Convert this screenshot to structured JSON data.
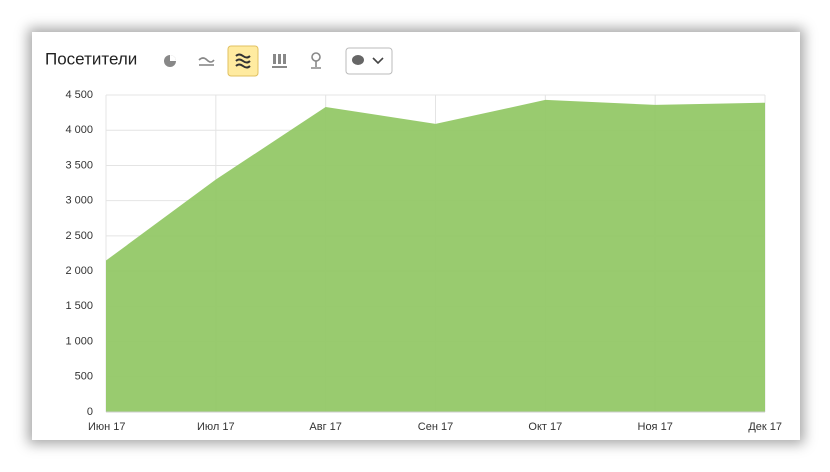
{
  "chart_data": {
    "type": "area",
    "title": "Посетители",
    "categories": [
      "Июн 17",
      "Июл 17",
      "Авг 17",
      "Сен 17",
      "Окт 17",
      "Ноя 17",
      "Дек 17"
    ],
    "values": [
      2150,
      3300,
      4330,
      4090,
      4430,
      4360,
      4390
    ],
    "color": "#94c867",
    "ylim": [
      0,
      4500
    ],
    "yticks": [
      0,
      500,
      {
        "value": 1000,
        "label": "1 000"
      },
      {
        "value": 1500,
        "label": "1 500"
      },
      {
        "value": 2000,
        "label": "2 000"
      },
      {
        "value": 2500,
        "label": "2 500"
      },
      {
        "value": 3000,
        "label": "3 000"
      },
      {
        "value": 3500,
        "label": "3 500"
      },
      {
        "value": 4000,
        "label": "4 000"
      },
      {
        "value": 4500,
        "label": "4 500"
      }
    ],
    "grid": true
  }
}
